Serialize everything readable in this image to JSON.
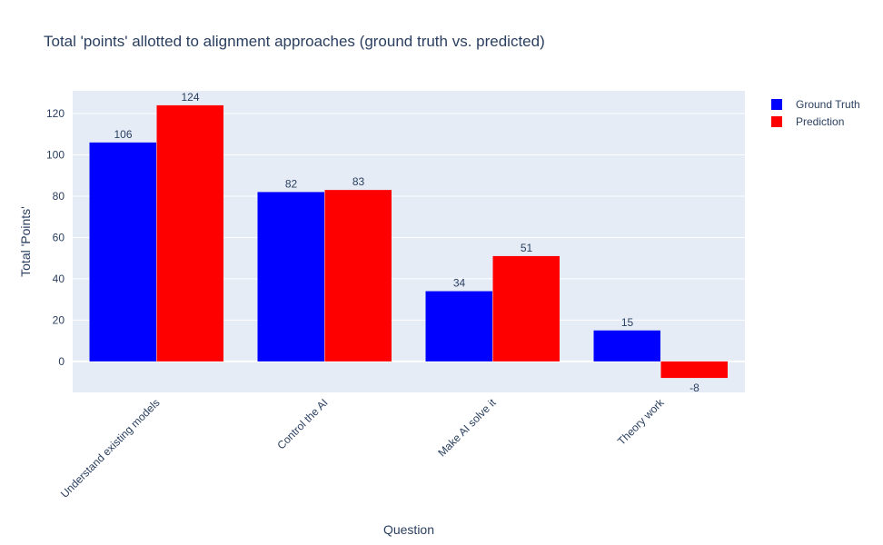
{
  "chart_data": {
    "type": "bar",
    "title": "Total 'points' allotted to alignment approaches (ground truth vs. predicted)",
    "xlabel": "Question",
    "ylabel": "Total 'Points'",
    "categories": [
      "Understand existing models",
      "Control the AI",
      "Make AI solve it",
      "Theory work"
    ],
    "series": [
      {
        "name": "Ground Truth",
        "color": "#0000ff",
        "values": [
          106,
          82,
          34,
          15
        ]
      },
      {
        "name": "Prediction",
        "color": "#ff0000",
        "values": [
          124,
          83,
          51,
          -8
        ]
      }
    ],
    "ylim": [
      -15,
      131
    ],
    "yticks": [
      0,
      20,
      40,
      60,
      80,
      100,
      120
    ],
    "grid": true,
    "legend": "top-right",
    "plot_background": "#e5ecf6"
  }
}
